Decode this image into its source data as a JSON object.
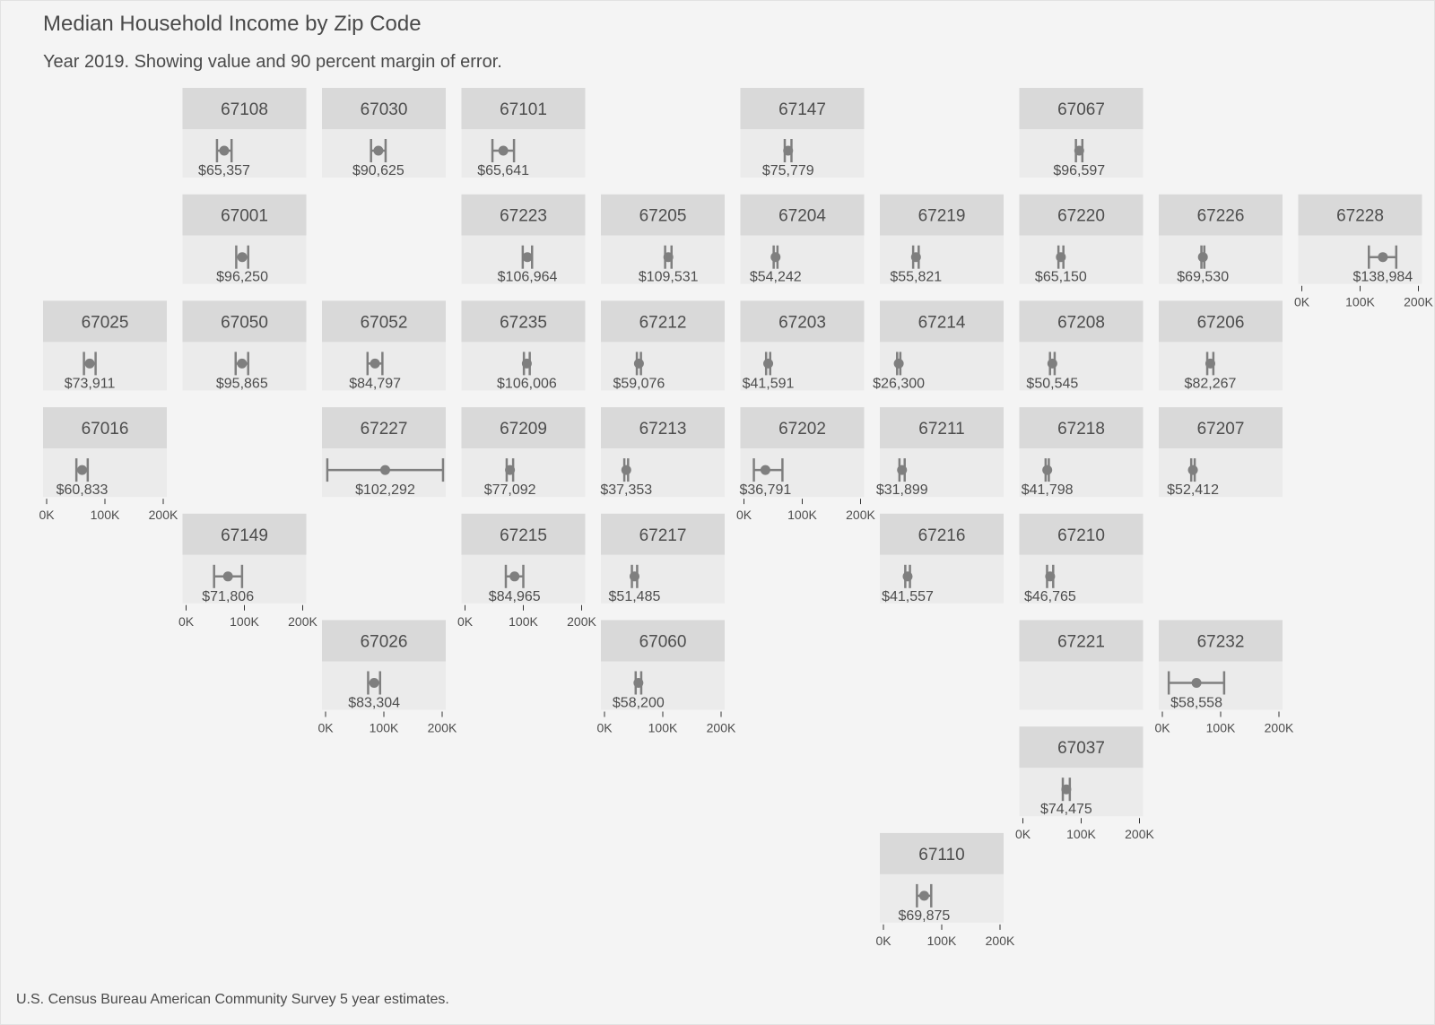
{
  "title": "Median Household Income by Zip Code",
  "subtitle": "Year 2019. Showing value and 90 percent margin of error.",
  "caption": "U.S. Census Bureau American Community Survey 5 year estimates.",
  "chart_data": {
    "type": "geofacet-errorbar",
    "x_range": [
      0,
      200000
    ],
    "x_ticks": [
      0,
      100000,
      200000
    ],
    "x_tick_labels": [
      "0K",
      "100K",
      "200K"
    ],
    "colors": {
      "strip": "#d9d9d9",
      "panel": "#ebebeb",
      "mark": "#7f7f7f",
      "background": "#f4f4f4"
    },
    "facets": [
      {
        "zip": "67108",
        "row": 1,
        "col": 2,
        "label": "$65,357",
        "estimate": 65357,
        "low": 53000,
        "high": 78000
      },
      {
        "zip": "67030",
        "row": 1,
        "col": 3,
        "label": "$90,625",
        "estimate": 90625,
        "low": 78000,
        "high": 103000
      },
      {
        "zip": "67101",
        "row": 1,
        "col": 4,
        "label": "$65,641",
        "estimate": 65641,
        "low": 47000,
        "high": 84000
      },
      {
        "zip": "67147",
        "row": 1,
        "col": 6,
        "label": "$75,779",
        "estimate": 75779,
        "low": 70000,
        "high": 81500
      },
      {
        "zip": "67067",
        "row": 1,
        "col": 8,
        "label": "$96,597",
        "estimate": 96597,
        "low": 91000,
        "high": 102000
      },
      {
        "zip": "67001",
        "row": 2,
        "col": 2,
        "label": "$96,250",
        "estimate": 96250,
        "low": 86000,
        "high": 106500
      },
      {
        "zip": "67223",
        "row": 2,
        "col": 4,
        "label": "$106,964",
        "estimate": 106964,
        "low": 99000,
        "high": 115000
      },
      {
        "zip": "67205",
        "row": 2,
        "col": 5,
        "label": "$109,531",
        "estimate": 109531,
        "low": 104000,
        "high": 115000
      },
      {
        "zip": "67204",
        "row": 2,
        "col": 6,
        "label": "$54,242",
        "estimate": 54242,
        "low": 51000,
        "high": 57500
      },
      {
        "zip": "67219",
        "row": 2,
        "col": 7,
        "label": "$55,821",
        "estimate": 55821,
        "low": 51000,
        "high": 60500
      },
      {
        "zip": "67220",
        "row": 2,
        "col": 8,
        "label": "$65,150",
        "estimate": 65150,
        "low": 61000,
        "high": 69500
      },
      {
        "zip": "67226",
        "row": 2,
        "col": 9,
        "label": "$69,530",
        "estimate": 69530,
        "low": 67000,
        "high": 72000
      },
      {
        "zip": "67228",
        "row": 2,
        "col": 10,
        "label": "$138,984",
        "estimate": 138984,
        "low": 115000,
        "high": 162000
      },
      {
        "zip": "67025",
        "row": 3,
        "col": 1,
        "label": "$73,911",
        "estimate": 73911,
        "low": 64000,
        "high": 84000
      },
      {
        "zip": "67050",
        "row": 3,
        "col": 2,
        "label": "$95,865",
        "estimate": 95865,
        "low": 85000,
        "high": 106500
      },
      {
        "zip": "67052",
        "row": 3,
        "col": 3,
        "label": "$84,797",
        "estimate": 84797,
        "low": 72000,
        "high": 97500
      },
      {
        "zip": "67235",
        "row": 3,
        "col": 4,
        "label": "$106,006",
        "estimate": 106006,
        "low": 101000,
        "high": 111000
      },
      {
        "zip": "67212",
        "row": 3,
        "col": 5,
        "label": "$59,076",
        "estimate": 59076,
        "low": 55500,
        "high": 62500
      },
      {
        "zip": "67203",
        "row": 3,
        "col": 6,
        "label": "$41,591",
        "estimate": 41591,
        "low": 38000,
        "high": 45000
      },
      {
        "zip": "67214",
        "row": 3,
        "col": 7,
        "label": "$26,300",
        "estimate": 26300,
        "low": 23500,
        "high": 29000
      },
      {
        "zip": "67208",
        "row": 3,
        "col": 8,
        "label": "$50,545",
        "estimate": 50545,
        "low": 46500,
        "high": 54500
      },
      {
        "zip": "67206",
        "row": 3,
        "col": 9,
        "label": "$82,267",
        "estimate": 82267,
        "low": 77000,
        "high": 87500
      },
      {
        "zip": "67016",
        "row": 4,
        "col": 1,
        "label": "$60,833",
        "estimate": 60833,
        "low": 51000,
        "high": 70500
      },
      {
        "zip": "67227",
        "row": 4,
        "col": 3,
        "label": "$102,292",
        "estimate": 102292,
        "low": 3000,
        "high": 201500
      },
      {
        "zip": "67209",
        "row": 4,
        "col": 4,
        "label": "$77,092",
        "estimate": 77092,
        "low": 71500,
        "high": 82500
      },
      {
        "zip": "67213",
        "row": 4,
        "col": 5,
        "label": "$37,353",
        "estimate": 37353,
        "low": 34000,
        "high": 40500
      },
      {
        "zip": "67202",
        "row": 4,
        "col": 6,
        "label": "$36,791",
        "estimate": 36791,
        "low": 17000,
        "high": 66000
      },
      {
        "zip": "67211",
        "row": 4,
        "col": 7,
        "label": "$31,899",
        "estimate": 31899,
        "low": 27500,
        "high": 36500
      },
      {
        "zip": "67218",
        "row": 4,
        "col": 8,
        "label": "$41,798",
        "estimate": 41798,
        "low": 39000,
        "high": 44500
      },
      {
        "zip": "67207",
        "row": 4,
        "col": 9,
        "label": "$52,412",
        "estimate": 52412,
        "low": 49500,
        "high": 55500
      },
      {
        "zip": "67149",
        "row": 5,
        "col": 2,
        "label": "$71,806",
        "estimate": 71806,
        "low": 48000,
        "high": 96000
      },
      {
        "zip": "67215",
        "row": 5,
        "col": 4,
        "label": "$84,965",
        "estimate": 84965,
        "low": 70000,
        "high": 100000
      },
      {
        "zip": "67217",
        "row": 5,
        "col": 5,
        "label": "$51,485",
        "estimate": 51485,
        "low": 47000,
        "high": 56000
      },
      {
        "zip": "67216",
        "row": 5,
        "col": 7,
        "label": "$41,557",
        "estimate": 41557,
        "low": 37500,
        "high": 45500
      },
      {
        "zip": "67210",
        "row": 5,
        "col": 8,
        "label": "$46,765",
        "estimate": 46765,
        "low": 41500,
        "high": 52000
      },
      {
        "zip": "67026",
        "row": 6,
        "col": 3,
        "label": "$83,304",
        "estimate": 83304,
        "low": 73000,
        "high": 93500
      },
      {
        "zip": "67060",
        "row": 6,
        "col": 5,
        "label": "$58,200",
        "estimate": 58200,
        "low": 53500,
        "high": 63000
      },
      {
        "zip": "67221",
        "row": 6,
        "col": 8,
        "label": "",
        "estimate": null,
        "low": null,
        "high": null
      },
      {
        "zip": "67232",
        "row": 6,
        "col": 9,
        "label": "$58,558",
        "estimate": 58558,
        "low": 11000,
        "high": 106000
      },
      {
        "zip": "67037",
        "row": 7,
        "col": 8,
        "label": "$74,475",
        "estimate": 74475,
        "low": 68500,
        "high": 80500
      },
      {
        "zip": "67110",
        "row": 8,
        "col": 7,
        "label": "$69,875",
        "estimate": 69875,
        "low": 57500,
        "high": 82000
      }
    ],
    "axis_shown_at": [
      "67228",
      "67016",
      "67202",
      "67149",
      "67215",
      "67026",
      "67060",
      "67232",
      "67037",
      "67110"
    ]
  }
}
